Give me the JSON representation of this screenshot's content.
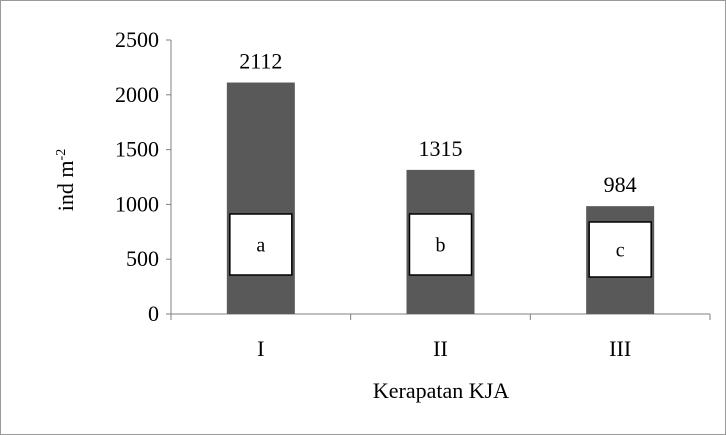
{
  "chart_data": {
    "type": "bar",
    "categories": [
      "I",
      "II",
      "III"
    ],
    "values": [
      2112,
      1315,
      984
    ],
    "data_labels": [
      "2112",
      "1315",
      "984"
    ],
    "group_letters": [
      "a",
      "b",
      "c"
    ],
    "xlabel": "Kerapatan KJA",
    "ylabel": "ind m",
    "ylabel_superscript": "-2",
    "ylim": [
      0,
      2500
    ],
    "yticks": [
      "0",
      "500",
      "1000",
      "1500",
      "2000",
      "2500"
    ],
    "grid": false,
    "legend": "none",
    "bar_color": "#595959"
  }
}
